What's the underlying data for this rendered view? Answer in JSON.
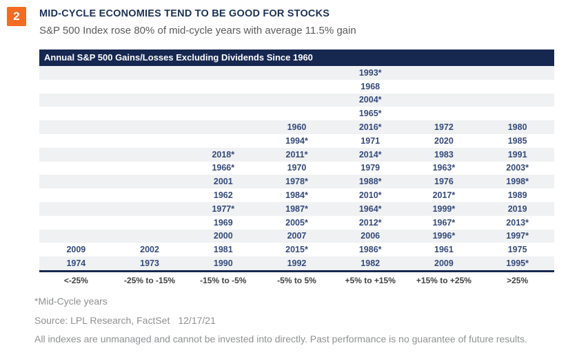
{
  "page": {
    "figure_number": "2",
    "title": "MID-CYCLE ECONOMIES TEND TO BE GOOD FOR STOCKS",
    "subtitle": "S&P 500 Index rose 80% of mid-cycle years with average 11.5% gain"
  },
  "chart_data": {
    "type": "bar",
    "title": "Annual S&P 500 Gains/Losses Excluding Dividends Since 1960",
    "xlabel": "",
    "ylabel": "",
    "legend_position": "none",
    "grid": "row-stripes",
    "categories": [
      "<-25%",
      "-25% to -15%",
      "-15% to -5%",
      "-5% to 5%",
      "+5% to +15%",
      "+15% to +25%",
      ">25%"
    ],
    "values": [
      2,
      2,
      9,
      11,
      15,
      11,
      11
    ],
    "columns": [
      {
        "label": "<-25%",
        "years": [
          "2009",
          "1974"
        ]
      },
      {
        "label": "-25% to -15%",
        "years": [
          "2002",
          "1973"
        ]
      },
      {
        "label": "-15% to -5%",
        "years": [
          "2018*",
          "1966*",
          "2001",
          "1962",
          "1977*",
          "1969",
          "2000",
          "1981",
          "1990"
        ]
      },
      {
        "label": "-5% to 5%",
        "years": [
          "1960",
          "1994*",
          "2011*",
          "1970",
          "1978*",
          "1984*",
          "1987*",
          "2005*",
          "2007",
          "2015*",
          "1992"
        ]
      },
      {
        "label": "+5% to +15%",
        "years": [
          "1993*",
          "1968",
          "2004*",
          "1965*",
          "2016*",
          "1971",
          "2014*",
          "1979",
          "1988*",
          "2010*",
          "1964*",
          "2012*",
          "2006",
          "1986*",
          "1982"
        ]
      },
      {
        "label": "+15% to +25%",
        "years": [
          "1972",
          "2020",
          "1983",
          "1963*",
          "1976",
          "2017*",
          "1999*",
          "1967*",
          "1996*",
          "1961",
          "2009"
        ]
      },
      {
        "label": ">25%",
        "years": [
          "1980",
          "1985",
          "1991",
          "2003*",
          "1998*",
          "1989",
          "2019",
          "2013*",
          "1997*",
          "1975",
          "1995*"
        ]
      }
    ]
  },
  "footer": {
    "footnote": "*Mid-Cycle years",
    "source": "Source: LPL Research, FactSet",
    "source_date": "12/17/21",
    "disclaimer": "All indexes are unmanaged and cannot be invested into directly. Past performance is no guarantee of future results."
  },
  "colors": {
    "navy": "#162750",
    "orange": "#F26C24",
    "year_text": "#34497B",
    "row_stripe": "#EFF1F2",
    "subtitle_gray": "#58595B",
    "footer_gray": "#8E9092"
  }
}
